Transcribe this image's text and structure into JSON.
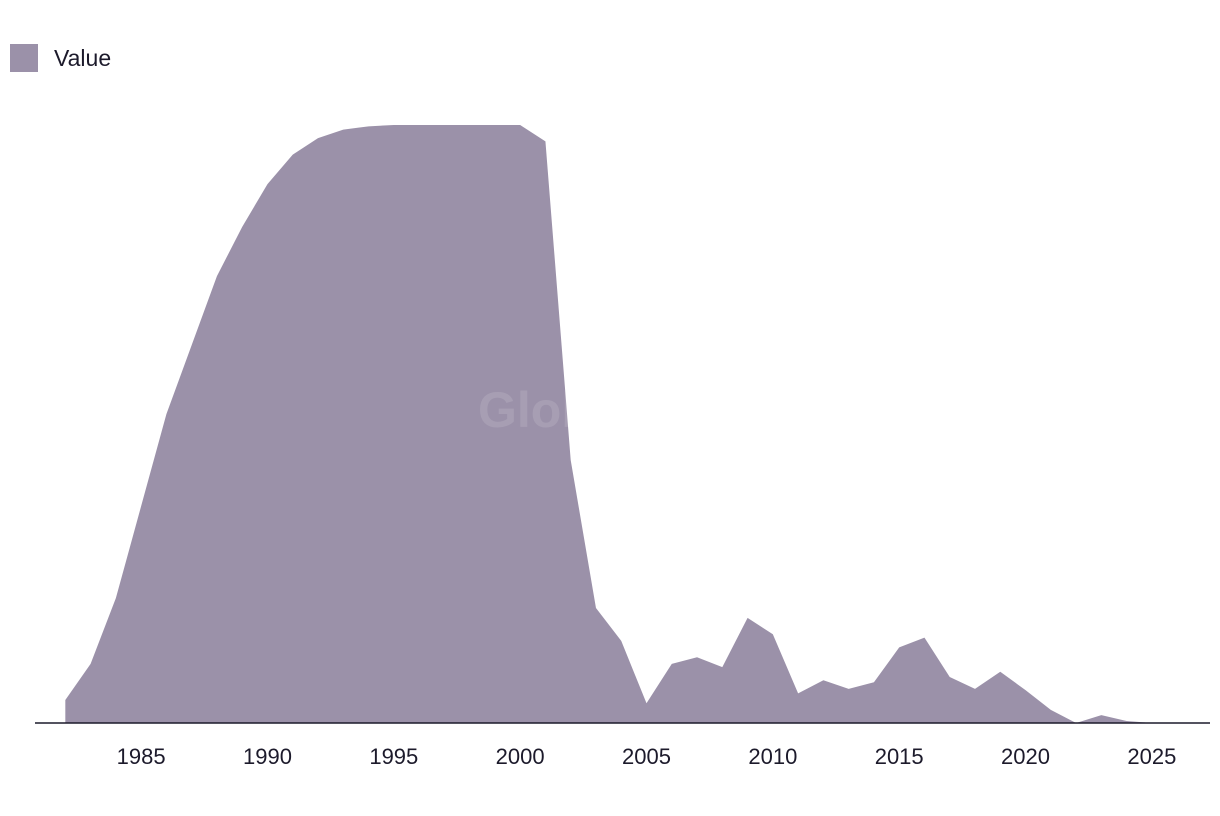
{
  "legend": {
    "label": "Value",
    "color": "#9b91a9"
  },
  "watermark": "GlobalData",
  "chart_data": {
    "type": "area",
    "title": "",
    "xlabel": "",
    "ylabel": "",
    "legend_position": "top-left",
    "grid": false,
    "xlim": [
      1980.8,
      2027.3
    ],
    "ylim": [
      0,
      100
    ],
    "x_ticks": [
      1985,
      1990,
      1995,
      2000,
      2005,
      2010,
      2015,
      2020,
      2025
    ],
    "series": [
      {
        "name": "Value",
        "color": "#9b91a9",
        "x": [
          1982,
          1983,
          1984,
          1985,
          1986,
          1987,
          1988,
          1989,
          1990,
          1991,
          1992,
          1993,
          1994,
          1995,
          1996,
          1997,
          1998,
          1999,
          2000,
          2001,
          2002,
          2003,
          2004,
          2005,
          2006,
          2007,
          2008,
          2009,
          2010,
          2011,
          2012,
          2013,
          2014,
          2015,
          2016,
          2017,
          2018,
          2019,
          2020,
          2021,
          2022,
          2023,
          2024,
          2025,
          2026,
          2027
        ],
        "y": [
          3.5,
          9,
          19,
          33,
          47,
          57.5,
          68,
          75.5,
          82,
          86.5,
          89,
          90.3,
          90.8,
          91,
          91,
          91,
          91,
          91,
          91,
          88.5,
          40,
          17.5,
          12.5,
          3,
          9,
          10,
          8.5,
          16,
          13.5,
          4.5,
          6.5,
          5.2,
          6.2,
          11.5,
          13,
          7,
          5.2,
          7.8,
          5,
          2,
          0,
          1.2,
          0.3,
          0,
          0,
          0
        ]
      }
    ]
  }
}
